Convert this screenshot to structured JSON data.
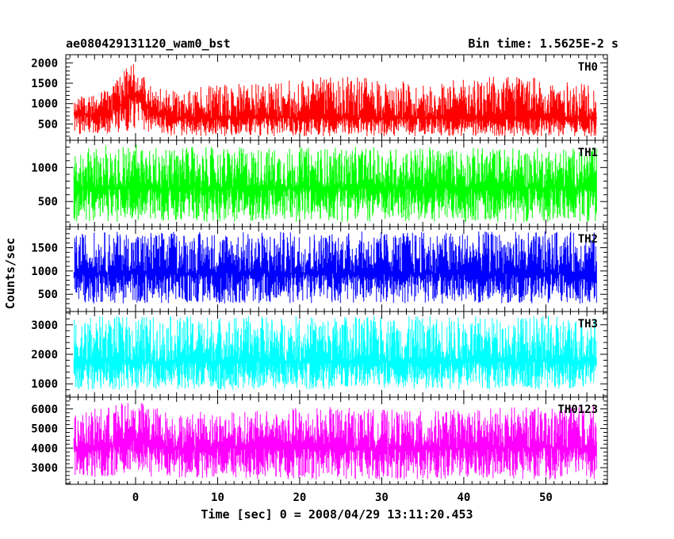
{
  "chart_data": {
    "type": "line",
    "title": "ae080429131120_wam0_bst",
    "subtitle": "Bin time: 1.5625E-2 s",
    "xlabel": "Time [sec] 0 = 2008/04/29 13:11:20.453",
    "ylabel": "Counts/sec",
    "xlim": [
      -8.5,
      57.5
    ],
    "x_ticks": [
      0,
      10,
      20,
      30,
      40,
      50
    ],
    "data_range": [
      -7.5,
      56.2
    ],
    "grid": false,
    "panels": [
      {
        "name": "TH0",
        "color": "#ff0000",
        "ylim": [
          100,
          2200
        ],
        "y_ticks": [
          500,
          1000,
          1500,
          2000
        ],
        "series": [
          {
            "name": "TH0",
            "x": [
              -7.5,
              -5,
              -3,
              -1,
              0,
              2,
              5,
              10,
              15,
              20,
              25,
              30,
              35,
              40,
              45,
              50,
              56
            ],
            "mean": [
              750,
              700,
              800,
              1100,
              1200,
              800,
              650,
              650,
              650,
              650,
              650,
              650,
              650,
              650,
              650,
              650,
              650
            ],
            "upper": [
              1150,
              1200,
              1400,
              1900,
              2150,
              1400,
              1300,
              1500,
              1500,
              1600,
              1700,
              1600,
              1500,
              1600,
              1700,
              1600,
              1450
            ],
            "lower": [
              250,
              250,
              250,
              300,
              400,
              250,
              200,
              200,
              200,
              200,
              200,
              200,
              200,
              200,
              200,
              200,
              200
            ]
          }
        ]
      },
      {
        "name": "TH1",
        "color": "#00ff00",
        "ylim": [
          130,
          1400
        ],
        "y_ticks": [
          500,
          1000
        ],
        "series": [
          {
            "name": "TH1",
            "x": [
              -7.5,
              -5,
              -3,
              -1,
              0,
              2,
              5,
              10,
              15,
              20,
              25,
              30,
              35,
              40,
              45,
              50,
              56
            ],
            "mean": [
              700,
              700,
              700,
              700,
              700,
              700,
              700,
              700,
              700,
              700,
              700,
              700,
              700,
              700,
              700,
              700,
              700
            ],
            "upper": [
              1250,
              1300,
              1350,
              1350,
              1380,
              1300,
              1300,
              1300,
              1300,
              1300,
              1300,
              1300,
              1300,
              1300,
              1300,
              1300,
              1300
            ],
            "lower": [
              200,
              200,
              200,
              200,
              230,
              200,
              200,
              200,
              200,
              200,
              200,
              200,
              200,
              200,
              200,
              200,
              200
            ]
          }
        ]
      },
      {
        "name": "TH2",
        "color": "#0000ff",
        "ylim": [
          130,
          1950
        ],
        "y_ticks": [
          500,
          1000,
          1500
        ],
        "series": [
          {
            "name": "TH2",
            "x": [
              -7.5,
              -5,
              -3,
              -1,
              0,
              2,
              5,
              10,
              15,
              20,
              25,
              30,
              35,
              40,
              45,
              50,
              56
            ],
            "mean": [
              950,
              950,
              950,
              950,
              950,
              950,
              950,
              950,
              950,
              950,
              950,
              950,
              950,
              950,
              950,
              950,
              950
            ],
            "upper": [
              1800,
              1850,
              1850,
              1850,
              1850,
              1850,
              1850,
              1850,
              1850,
              1850,
              1850,
              1850,
              1850,
              1850,
              1850,
              1850,
              1850
            ],
            "lower": [
              300,
              300,
              300,
              300,
              300,
              300,
              300,
              300,
              300,
              300,
              300,
              300,
              300,
              300,
              300,
              300,
              300
            ]
          }
        ]
      },
      {
        "name": "TH3",
        "color": "#00ffff",
        "ylim": [
          550,
          3450
        ],
        "y_ticks": [
          1000,
          2000,
          3000
        ],
        "series": [
          {
            "name": "TH3",
            "x": [
              -7.5,
              -5,
              -3,
              -1,
              0,
              2,
              5,
              10,
              15,
              20,
              25,
              30,
              35,
              40,
              45,
              50,
              56
            ],
            "mean": [
              1750,
              1750,
              1750,
              1750,
              1750,
              1750,
              1750,
              1750,
              1750,
              1750,
              1750,
              1750,
              1750,
              1750,
              1750,
              1750,
              1750
            ],
            "upper": [
              3200,
              3300,
              3300,
              3300,
              3350,
              3300,
              3300,
              3300,
              3300,
              3300,
              3300,
              3300,
              3300,
              3300,
              3300,
              3300,
              3300
            ],
            "lower": [
              800,
              800,
              800,
              800,
              800,
              800,
              800,
              800,
              800,
              800,
              800,
              800,
              800,
              800,
              800,
              800,
              800
            ]
          }
        ]
      },
      {
        "name": "TH0123",
        "color": "#ff00ff",
        "ylim": [
          2150,
          6600
        ],
        "y_ticks": [
          3000,
          4000,
          5000,
          6000
        ],
        "series": [
          {
            "name": "TH0123",
            "x": [
              -7.5,
              -5,
              -3,
              -1,
              0,
              2,
              5,
              10,
              15,
              20,
              25,
              30,
              35,
              40,
              45,
              50,
              56
            ],
            "mean": [
              4000,
              4050,
              4100,
              4300,
              4400,
              4100,
              4000,
              4000,
              4000,
              4000,
              4000,
              4000,
              4000,
              4000,
              4000,
              4000,
              4000
            ],
            "upper": [
              5700,
              6000,
              6200,
              6400,
              6500,
              6200,
              5800,
              5900,
              5900,
              6100,
              6100,
              6000,
              5900,
              6000,
              6100,
              6100,
              6200
            ],
            "lower": [
              2500,
              2500,
              2500,
              2700,
              2900,
              2500,
              2400,
              2400,
              2400,
              2400,
              2400,
              2400,
              2400,
              2400,
              2400,
              2400,
              2400
            ]
          }
        ]
      }
    ]
  }
}
